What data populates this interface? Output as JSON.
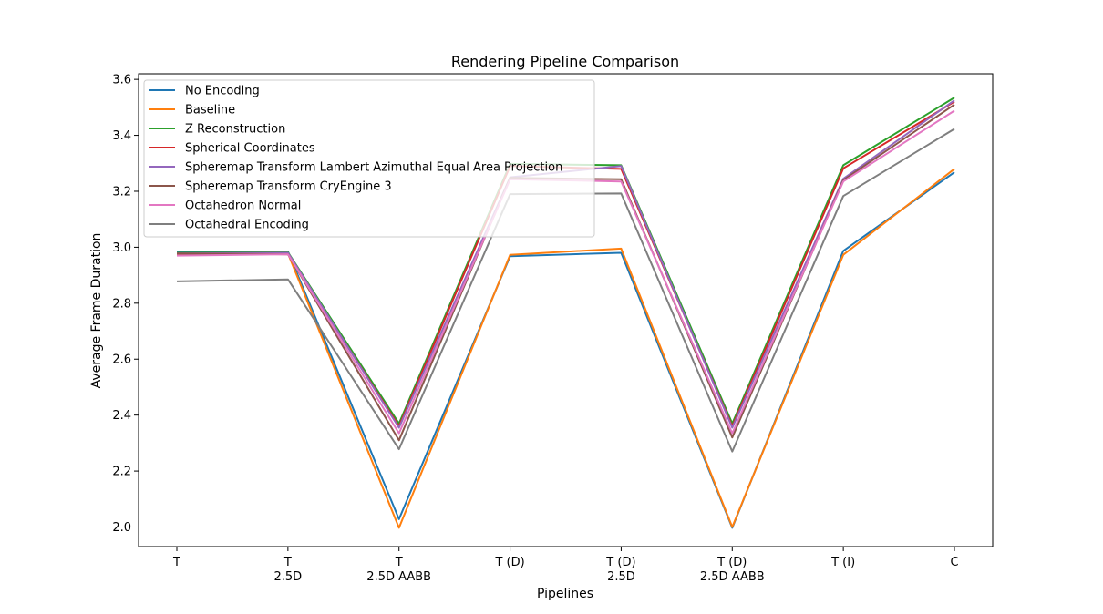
{
  "chart_data": {
    "type": "line",
    "title": "Rendering Pipeline Comparison",
    "xlabel": "Pipelines",
    "ylabel": "Average Frame Duration",
    "categories": [
      "T",
      "T\n2.5D",
      "T\n2.5D AABB",
      "T (D)",
      "T (D)\n2.5D",
      "T (D)\n2.5D AABB",
      "T (I)",
      "C"
    ],
    "ylim": [
      1.93,
      3.62
    ],
    "yticks": [
      2.0,
      2.2,
      2.4,
      2.6,
      2.8,
      3.0,
      3.2,
      3.4,
      3.6
    ],
    "grid": false,
    "legend_position": "top-left",
    "series": [
      {
        "name": "No Encoding",
        "color": "#1f77b4",
        "values": [
          2.985,
          2.985,
          2.028,
          2.968,
          2.98,
          1.997,
          2.987,
          3.268
        ]
      },
      {
        "name": "Baseline",
        "color": "#ff7f0e",
        "values": [
          2.975,
          2.978,
          1.997,
          2.973,
          2.995,
          2.0,
          2.973,
          3.28
        ]
      },
      {
        "name": "Z Reconstruction",
        "color": "#2ca02c",
        "values": [
          2.98,
          2.982,
          2.37,
          3.298,
          3.293,
          2.37,
          3.293,
          3.535
        ]
      },
      {
        "name": "Spherical Coordinates",
        "color": "#d62728",
        "values": [
          2.977,
          2.975,
          2.36,
          3.29,
          3.28,
          2.36,
          3.282,
          3.52
        ]
      },
      {
        "name": "Spheremap Transform Lambert Azimuthal Equal Area Projection",
        "color": "#9467bd",
        "values": [
          2.978,
          2.98,
          2.355,
          3.25,
          3.29,
          2.355,
          3.245,
          3.525
        ]
      },
      {
        "name": "Spheremap Transform CryEngine 3",
        "color": "#8c564b",
        "values": [
          2.978,
          2.975,
          2.31,
          3.248,
          3.243,
          2.32,
          3.24,
          3.51
        ]
      },
      {
        "name": "Octahedron Normal",
        "color": "#e377c2",
        "values": [
          2.97,
          2.975,
          2.335,
          3.243,
          3.235,
          2.335,
          3.235,
          3.488
        ]
      },
      {
        "name": "Octahedral Encoding",
        "color": "#7f7f7f",
        "values": [
          2.878,
          2.885,
          2.278,
          3.19,
          3.192,
          2.27,
          3.183,
          3.423
        ]
      }
    ]
  }
}
